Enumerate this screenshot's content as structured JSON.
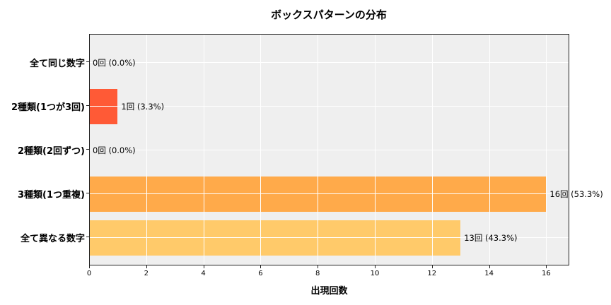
{
  "chart_data": {
    "type": "bar",
    "orientation": "horizontal",
    "title": "ボックスパターンの分布",
    "xlabel": "出現回数",
    "ylabel": "",
    "xlim": [
      0,
      16.8
    ],
    "xticks": [
      0,
      2,
      4,
      6,
      8,
      10,
      12,
      14,
      16
    ],
    "grid": true,
    "categories": [
      "全て同じ数字",
      "2種類(1つが3回)",
      "2種類(2回ずつ)",
      "3種類(1つ重複)",
      "全て異なる数字"
    ],
    "values": [
      0,
      1,
      0,
      16,
      13
    ],
    "percentages": [
      0.0,
      3.3,
      0.0,
      53.3,
      43.3
    ],
    "data_labels": [
      "0回 (0.0%)",
      "1回 (3.3%)",
      "0回 (0.0%)",
      "16回 (53.3%)",
      "13回 (43.3%)"
    ],
    "colors": [
      "#ff5a36",
      "#ff5a36",
      "#ff8c42",
      "#ffaa4a",
      "#ffca6a"
    ]
  }
}
